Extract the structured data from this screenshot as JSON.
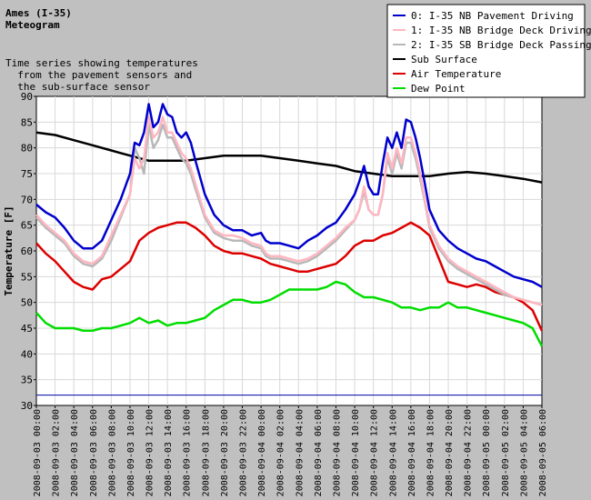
{
  "header": {
    "title_line1": "Ames (I-35)",
    "title_line2": "Meteogram",
    "subtitle_lines": [
      "Time series showing temperatures",
      "  from the pavement sensors and",
      "  the sub-surface sensor"
    ]
  },
  "chart_data": {
    "type": "line",
    "title": "Ames (I-35) Meteogram",
    "subtitle": "Time series showing temperatures from the pavement sensors and the sub-surface sensor",
    "ylabel": "Temperature [F]",
    "xlabel": "",
    "ylim": [
      30,
      90
    ],
    "yticks": [
      30,
      35,
      40,
      45,
      50,
      55,
      60,
      65,
      70,
      75,
      80,
      85,
      90
    ],
    "xlim_hours": [
      0,
      54
    ],
    "xticks": [
      {
        "hour": 0,
        "label": "2008-09-03 00:00"
      },
      {
        "hour": 2,
        "label": "2008-09-03 02:00"
      },
      {
        "hour": 4,
        "label": "2008-09-03 04:00"
      },
      {
        "hour": 6,
        "label": "2008-09-03 06:00"
      },
      {
        "hour": 8,
        "label": "2008-09-03 08:00"
      },
      {
        "hour": 10,
        "label": "2008-09-03 10:00"
      },
      {
        "hour": 12,
        "label": "2008-09-03 12:00"
      },
      {
        "hour": 14,
        "label": "2008-09-03 14:00"
      },
      {
        "hour": 16,
        "label": "2008-09-03 16:00"
      },
      {
        "hour": 18,
        "label": "2008-09-03 18:00"
      },
      {
        "hour": 20,
        "label": "2008-09-03 20:00"
      },
      {
        "hour": 22,
        "label": "2008-09-03 22:00"
      },
      {
        "hour": 24,
        "label": "2008-09-04 00:00"
      },
      {
        "hour": 26,
        "label": "2008-09-04 02:00"
      },
      {
        "hour": 28,
        "label": "2008-09-04 04:00"
      },
      {
        "hour": 30,
        "label": "2008-09-04 06:00"
      },
      {
        "hour": 32,
        "label": "2008-09-04 08:00"
      },
      {
        "hour": 34,
        "label": "2008-09-04 10:00"
      },
      {
        "hour": 36,
        "label": "2008-09-04 12:00"
      },
      {
        "hour": 38,
        "label": "2008-09-04 14:00"
      },
      {
        "hour": 40,
        "label": "2008-09-04 16:00"
      },
      {
        "hour": 42,
        "label": "2008-09-04 18:00"
      },
      {
        "hour": 44,
        "label": "2008-09-04 20:00"
      },
      {
        "hour": 46,
        "label": "2008-09-04 22:00"
      },
      {
        "hour": 48,
        "label": "2008-09-05 00:00"
      },
      {
        "hour": 50,
        "label": "2008-09-05 02:00"
      },
      {
        "hour": 52,
        "label": "2008-09-05 04:00"
      },
      {
        "hour": 54,
        "label": "2008-09-05 06:00"
      }
    ],
    "grid": true,
    "legend_position": "top-right",
    "reference_line": {
      "y": 32,
      "color": "#0000aa"
    },
    "series": [
      {
        "name": "0: I-35 NB Pavement Driving",
        "color": "#0000cc",
        "x": [
          0,
          1,
          2,
          3,
          4,
          5,
          6,
          7,
          8,
          9,
          10,
          10.5,
          11,
          11.5,
          12,
          12.5,
          13,
          13.5,
          14,
          14.5,
          15,
          15.5,
          16,
          16.5,
          17,
          18,
          19,
          20,
          21,
          22,
          23,
          24,
          24.5,
          25,
          26,
          27,
          28,
          29,
          30,
          31,
          32,
          33,
          34,
          34.5,
          35,
          35.5,
          36,
          36.5,
          37,
          37.5,
          38,
          38.5,
          39,
          39.5,
          40,
          40.5,
          41,
          41.5,
          42,
          43,
          44,
          45,
          46,
          47,
          48,
          49,
          50,
          51,
          52,
          53,
          54
        ],
        "y": [
          69,
          67.5,
          66.5,
          64.5,
          62,
          60.5,
          60.5,
          62,
          66,
          70,
          75,
          81,
          80.5,
          83,
          88.5,
          84,
          85,
          88.5,
          86.5,
          86,
          83,
          82,
          83,
          81,
          77.5,
          71,
          67,
          65,
          64,
          64,
          63,
          63.5,
          62,
          61.5,
          61.5,
          61,
          60.5,
          62,
          63,
          64.5,
          65.5,
          68,
          71,
          73.5,
          76.5,
          72.5,
          71,
          71,
          77,
          82,
          80,
          83,
          80,
          85.5,
          85,
          82,
          78,
          73,
          68,
          64,
          62,
          60.5,
          59.5,
          58.5,
          58,
          57,
          56,
          55,
          54.5,
          54,
          53
        ]
      },
      {
        "name": "1: I-35 NB Bridge Deck Driving",
        "color": "#ffb6c1",
        "x": [
          0,
          1,
          2,
          3,
          4,
          5,
          6,
          7,
          8,
          9,
          10,
          10.5,
          11,
          11.5,
          12,
          12.5,
          13,
          13.5,
          14,
          14.5,
          15,
          15.5,
          16,
          16.5,
          17,
          18,
          19,
          20,
          21,
          22,
          23,
          24,
          24.5,
          25,
          26,
          27,
          28,
          29,
          30,
          31,
          32,
          33,
          34,
          34.5,
          35,
          35.5,
          36,
          36.5,
          37,
          37.5,
          38,
          38.5,
          39,
          39.5,
          40,
          40.5,
          41,
          41.5,
          42,
          43,
          44,
          45,
          46,
          47,
          48,
          49,
          50,
          51,
          52,
          53,
          54
        ],
        "y": [
          67,
          65,
          63.5,
          62,
          59.5,
          58,
          57.5,
          59,
          63,
          67,
          71,
          78,
          76,
          78,
          86,
          82,
          83,
          86,
          83,
          83,
          81,
          79,
          78,
          76,
          73,
          67,
          64,
          63,
          63,
          62.5,
          61.5,
          61,
          59.5,
          59,
          59,
          58.5,
          58,
          58.5,
          59.5,
          61,
          62.5,
          64.5,
          66,
          68,
          72.5,
          68,
          67,
          67,
          71,
          79,
          76,
          80,
          77,
          82,
          82,
          79,
          75,
          70,
          65,
          61,
          58.5,
          57,
          56,
          55,
          54,
          53,
          52,
          51,
          50.5,
          50,
          49.5
        ]
      },
      {
        "name": "2: I-35 SB Bridge Deck Passing",
        "color": "#b8b8b8",
        "x": [
          0,
          1,
          2,
          3,
          4,
          5,
          6,
          7,
          8,
          9,
          10,
          10.5,
          11,
          11.5,
          12,
          12.5,
          13,
          13.5,
          14,
          14.5,
          15,
          15.5,
          16,
          16.5,
          17,
          18,
          19,
          20,
          21,
          22,
          23,
          24,
          24.5,
          25,
          26,
          27,
          28,
          29,
          30,
          31,
          32,
          33,
          34,
          34.5,
          35,
          35.5,
          36,
          36.5,
          37,
          37.5,
          38,
          38.5,
          39,
          39.5,
          40,
          40.5,
          41,
          41.5,
          42,
          43,
          44,
          45,
          46,
          47,
          48,
          49,
          50,
          51,
          52,
          53,
          54
        ],
        "y": [
          66.5,
          64.5,
          63,
          61.5,
          59,
          57.5,
          57,
          58.5,
          62,
          66.5,
          71,
          80,
          78,
          75,
          84.5,
          80,
          81.5,
          84.5,
          82,
          82,
          80,
          78,
          77,
          75,
          72,
          66.5,
          63.5,
          62.5,
          62,
          62,
          61,
          60.5,
          59,
          58.5,
          58.5,
          58,
          57.5,
          58,
          59,
          60.5,
          62,
          64,
          66,
          68,
          71.5,
          68,
          67,
          67,
          71,
          78,
          75,
          79,
          76,
          81,
          81,
          78,
          74,
          69.5,
          64.5,
          60.5,
          58,
          56.5,
          55.5,
          54.5,
          53.5,
          52.5,
          51.5,
          51,
          50.5,
          50,
          49.5
        ]
      },
      {
        "name": "Sub Surface",
        "color": "#000000",
        "x": [
          0,
          2,
          4,
          6,
          8,
          10,
          12,
          14,
          16,
          18,
          20,
          22,
          24,
          26,
          28,
          30,
          32,
          34,
          36,
          38,
          40,
          42,
          44,
          46,
          48,
          50,
          52,
          54
        ],
        "y": [
          83,
          82.5,
          81.5,
          80.5,
          79.5,
          78.5,
          77.5,
          77.5,
          77.5,
          78,
          78.5,
          78.5,
          78.5,
          78,
          77.5,
          77,
          76.5,
          75.5,
          75,
          74.5,
          74.5,
          74.5,
          75,
          75.3,
          75,
          74.5,
          74,
          73.3
        ]
      },
      {
        "name": "Air Temperature",
        "color": "#dd0000",
        "x": [
          0,
          1,
          2,
          3,
          4,
          5,
          6,
          7,
          8,
          9,
          10,
          11,
          12,
          13,
          14,
          15,
          16,
          17,
          18,
          19,
          20,
          21,
          22,
          23,
          24,
          25,
          26,
          27,
          28,
          29,
          30,
          31,
          32,
          33,
          34,
          35,
          36,
          37,
          38,
          39,
          40,
          41,
          42,
          43,
          44,
          45,
          46,
          47,
          48,
          49,
          50,
          51,
          52,
          53,
          54
        ],
        "y": [
          61.5,
          59.5,
          58,
          56,
          54,
          53,
          52.5,
          54.5,
          55,
          56.5,
          58,
          62,
          63.5,
          64.5,
          65,
          65.5,
          65.5,
          64.5,
          63,
          61,
          60,
          59.5,
          59.5,
          59,
          58.5,
          57.5,
          57,
          56.5,
          56,
          56,
          56.5,
          57,
          57.5,
          59,
          61,
          62,
          62,
          63,
          63.5,
          64.5,
          65.5,
          64.5,
          63,
          58.5,
          54,
          53.5,
          53,
          53.5,
          53,
          52,
          51.5,
          51,
          50,
          48.5,
          44.5
        ]
      },
      {
        "name": "Dew Point",
        "color": "#00dd00",
        "x": [
          0,
          1,
          2,
          3,
          4,
          5,
          6,
          7,
          8,
          9,
          10,
          11,
          12,
          13,
          14,
          15,
          16,
          17,
          18,
          19,
          20,
          21,
          22,
          23,
          24,
          25,
          26,
          27,
          28,
          29,
          30,
          31,
          32,
          33,
          34,
          35,
          36,
          37,
          38,
          39,
          40,
          41,
          42,
          43,
          44,
          45,
          46,
          47,
          48,
          49,
          50,
          51,
          52,
          53,
          54
        ],
        "y": [
          48,
          46,
          45,
          45,
          45,
          44.5,
          44.5,
          45,
          45,
          45.5,
          46,
          47,
          46,
          46.5,
          45.5,
          46,
          46,
          46.5,
          47,
          48.5,
          49.5,
          50.5,
          50.5,
          50,
          50,
          50.5,
          51.5,
          52.5,
          52.5,
          52.5,
          52.5,
          53,
          54,
          53.5,
          52,
          51,
          51,
          50.5,
          50,
          49,
          49,
          48.5,
          49,
          49,
          50,
          49,
          49,
          48.5,
          48,
          47.5,
          47,
          46.5,
          46,
          45,
          41.5
        ]
      }
    ]
  }
}
